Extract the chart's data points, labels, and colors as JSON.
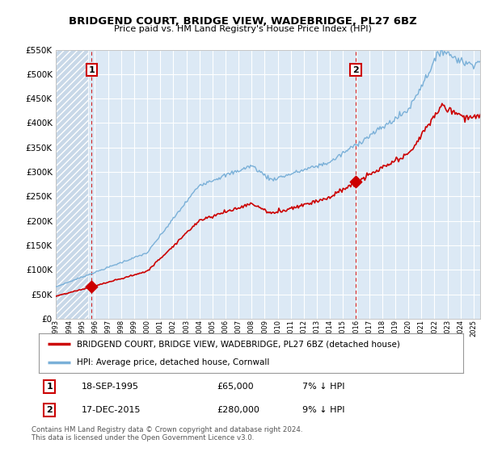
{
  "title": "BRIDGEND COURT, BRIDGE VIEW, WADEBRIDGE, PL27 6BZ",
  "subtitle": "Price paid vs. HM Land Registry's House Price Index (HPI)",
  "legend_line1": "BRIDGEND COURT, BRIDGE VIEW, WADEBRIDGE, PL27 6BZ (detached house)",
  "legend_line2": "HPI: Average price, detached house, Cornwall",
  "annotation1_date": "18-SEP-1995",
  "annotation1_price": "£65,000",
  "annotation1_hpi": "7% ↓ HPI",
  "annotation2_date": "17-DEC-2015",
  "annotation2_price": "£280,000",
  "annotation2_hpi": "9% ↓ HPI",
  "sale1_year": 1995.75,
  "sale1_value": 65000,
  "sale2_year": 2015.96,
  "sale2_value": 280000,
  "ylim": [
    0,
    550000
  ],
  "yticks": [
    0,
    50000,
    100000,
    150000,
    200000,
    250000,
    300000,
    350000,
    400000,
    450000,
    500000,
    550000
  ],
  "xmin": 1993,
  "xmax": 2025.5,
  "background_color": "#ffffff",
  "plot_bg_color": "#dce9f5",
  "grid_color": "#ffffff",
  "hpi_line_color": "#7ab0d8",
  "price_line_color": "#cc0000",
  "dashed_line_color": "#cc0000",
  "hatch_color": "#c8d8e8",
  "footnote": "Contains HM Land Registry data © Crown copyright and database right 2024.\nThis data is licensed under the Open Government Licence v3.0."
}
